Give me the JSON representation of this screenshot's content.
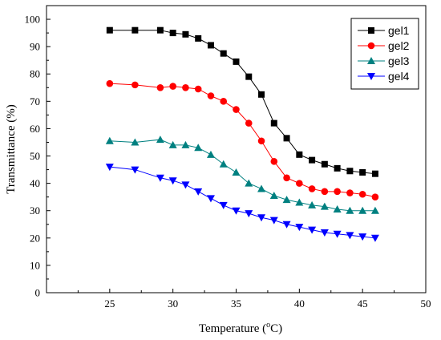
{
  "chart_data": {
    "type": "line",
    "xlabel": "Temperature (°C)",
    "xlabel_parts": {
      "before": "Temperature (",
      "sup": "o",
      "after": "C)"
    },
    "ylabel": "Transmittance (%)",
    "xlim": [
      20,
      50
    ],
    "ylim": [
      0,
      105
    ],
    "xticks": [
      25,
      30,
      35,
      40,
      45,
      50
    ],
    "yticks": [
      0,
      10,
      20,
      30,
      40,
      50,
      60,
      70,
      80,
      90,
      100
    ],
    "grid": false,
    "legend_position": "top-right",
    "series": [
      {
        "name": "gel1",
        "color": "#000000",
        "marker": "square",
        "x": [
          25,
          27,
          29,
          30,
          31,
          32,
          33,
          34,
          35,
          36,
          37,
          38,
          39,
          40,
          41,
          42,
          43,
          44,
          45,
          46
        ],
        "y": [
          96,
          96,
          96,
          95,
          94.5,
          93,
          90.5,
          87.5,
          84.5,
          79,
          72.5,
          62,
          56.5,
          50.5,
          48.5,
          47,
          45.5,
          44.5,
          44,
          43.5
        ]
      },
      {
        "name": "gel2",
        "color": "#ff0000",
        "marker": "circle",
        "x": [
          25,
          27,
          29,
          30,
          31,
          32,
          33,
          34,
          35,
          36,
          37,
          38,
          39,
          40,
          41,
          42,
          43,
          44,
          45,
          46
        ],
        "y": [
          76.5,
          76,
          75,
          75.5,
          75,
          74.5,
          72,
          70,
          67,
          62,
          55.5,
          48,
          42,
          40,
          38,
          37,
          37,
          36.5,
          36,
          35
        ]
      },
      {
        "name": "gel3",
        "color": "#008080",
        "marker": "triangle-up",
        "x": [
          25,
          27,
          29,
          30,
          31,
          32,
          33,
          34,
          35,
          36,
          37,
          38,
          39,
          40,
          41,
          42,
          43,
          44,
          45,
          46
        ],
        "y": [
          55.5,
          55,
          56,
          54,
          54,
          53,
          50.5,
          47,
          44,
          40,
          38,
          35.5,
          34,
          33,
          32,
          31.5,
          30.5,
          30,
          30,
          30
        ]
      },
      {
        "name": "gel4",
        "color": "#0000ff",
        "marker": "triangle-down",
        "x": [
          25,
          27,
          29,
          30,
          31,
          32,
          33,
          34,
          35,
          36,
          37,
          38,
          39,
          40,
          41,
          42,
          43,
          44,
          45,
          46
        ],
        "y": [
          46,
          45,
          42,
          41,
          39.5,
          37,
          34.5,
          32,
          30,
          29,
          27.5,
          26.5,
          25,
          24,
          23,
          22,
          21.5,
          21,
          20.5,
          20
        ]
      }
    ]
  }
}
